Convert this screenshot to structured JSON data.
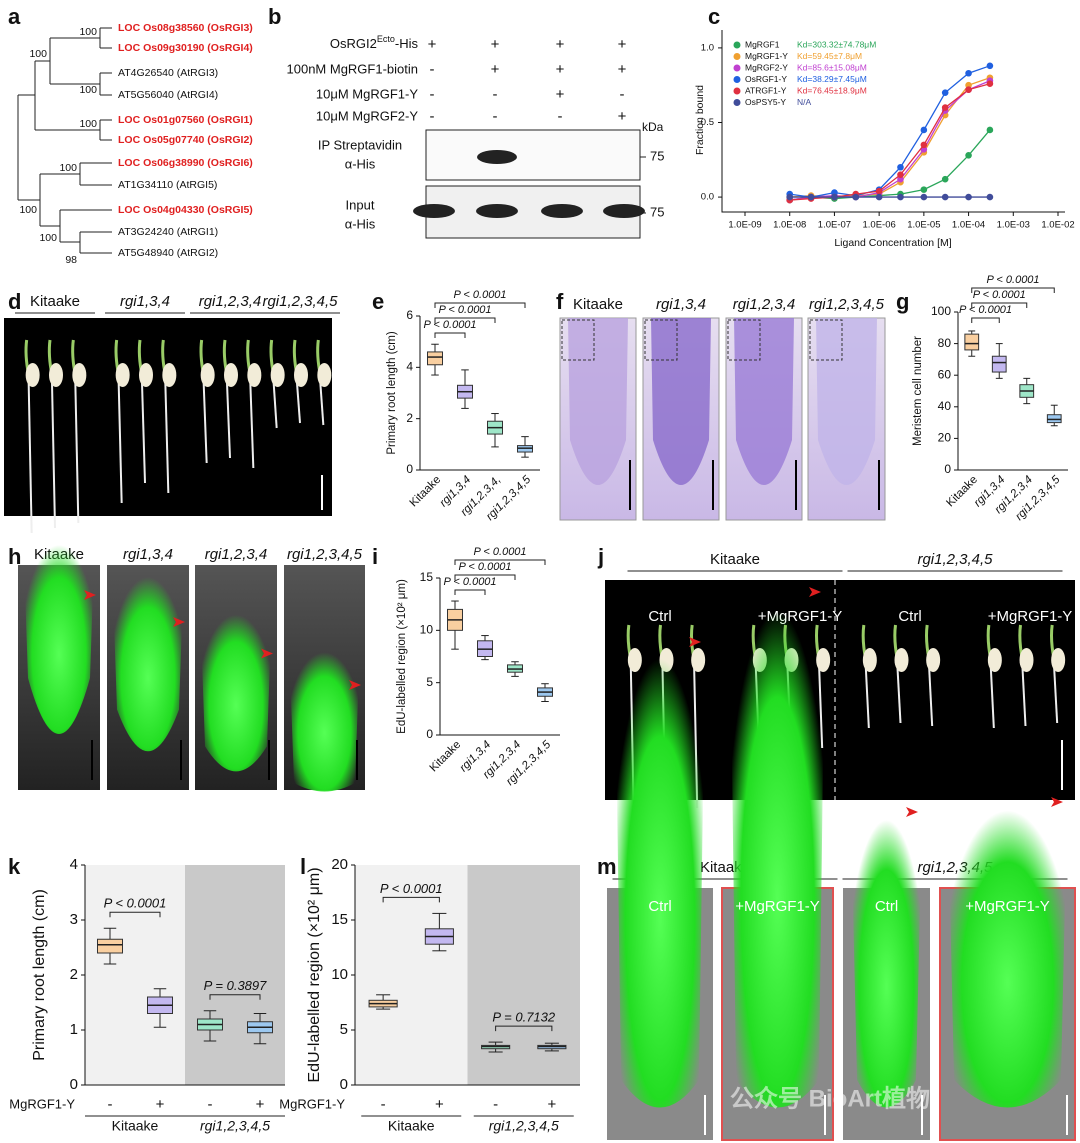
{
  "panel_letters": [
    "a",
    "b",
    "c",
    "d",
    "e",
    "f",
    "g",
    "h",
    "i",
    "j",
    "k",
    "l",
    "m"
  ],
  "tree": {
    "leaves": [
      {
        "label": "LOC Os08g38560 (OsRGI3)",
        "highlight": true
      },
      {
        "label": "LOC Os09g30190 (OsRGI4)",
        "highlight": true
      },
      {
        "label": "AT4G26540 (AtRGI3)",
        "highlight": false
      },
      {
        "label": "AT5G56040 (AtRGI4)",
        "highlight": false
      },
      {
        "label": "LOC Os01g07560 (OsRGI1)",
        "highlight": true
      },
      {
        "label": "LOC Os05g07740 (OsRGI2)",
        "highlight": true
      },
      {
        "label": "LOC Os06g38990 (OsRGI6)",
        "highlight": true
      },
      {
        "label": "AT1G34110 (AtRGI5)",
        "highlight": false
      },
      {
        "label": "LOC Os04g04330 (OsRGI5)",
        "highlight": true
      },
      {
        "label": "AT3G24240 (AtRGI1)",
        "highlight": false
      },
      {
        "label": "AT5G48940 (AtRGI2)",
        "highlight": false
      }
    ],
    "supports": [
      100,
      100,
      100,
      100,
      100,
      100,
      100,
      98
    ]
  },
  "blot": {
    "first_condition": {
      "pre": "OsRGI2",
      "sup": "Ecto",
      "post": "-His"
    },
    "conditions": [
      "100nM MgRGF1-biotin",
      "10μM MgRGF1-Y",
      "10μM MgRGF2-Y"
    ],
    "signs": [
      [
        "+",
        "+",
        "+",
        "+"
      ],
      [
        "-",
        "+",
        "+",
        "+"
      ],
      [
        "-",
        "-",
        "+",
        "-"
      ],
      [
        "-",
        "-",
        "-",
        "+"
      ]
    ],
    "ip_label": "IP Streptavidin",
    "ip_antibody": "α-His",
    "input_label": "Input",
    "input_antibody": "α-His",
    "kda": "kDa",
    "markers": [
      75,
      75
    ]
  },
  "photos": {
    "d": [
      "Kitaake",
      "rgi1,3,4",
      "rgi1,2,3,4",
      "rgi1,2,3,4,5"
    ],
    "f": [
      "Kitaake",
      "rgi1,3,4",
      "rgi1,2,3,4",
      "rgi1,2,3,4,5"
    ],
    "h": [
      "Kitaake",
      "rgi1,3,4",
      "rgi1,2,3,4",
      "rgi1,2,3,4,5"
    ],
    "j": {
      "groups": [
        "Kitaake",
        "rgi1,2,3,4,5"
      ],
      "conditions": [
        "Ctrl",
        "+MgRGF1-Y",
        "Ctrl",
        "+MgRGF1-Y"
      ]
    },
    "m": {
      "groups": [
        "Kitaake",
        "rgi1,2,3,4,5"
      ],
      "conditions": [
        "Ctrl",
        "+MgRGF1-Y",
        "Ctrl",
        "+MgRGF1-Y"
      ]
    }
  },
  "watermark": "公众号 BioArt植物",
  "chart_data": [
    {
      "type": "line",
      "log_x": true,
      "xlabel": "Ligand Concentration [M]",
      "ylabel": "Fraction bound",
      "x": [
        1e-08,
        3e-08,
        1e-07,
        3e-07,
        1e-06,
        3e-06,
        1e-05,
        3e-05,
        0.0001,
        0.0003
      ],
      "xlim": [
        1e-09,
        0.01
      ],
      "xticks": [
        {
          "value": 1e-09,
          "label": "1.0E-09"
        },
        {
          "value": 1e-08,
          "label": "1.0E-08"
        },
        {
          "value": 1e-07,
          "label": "1.0E-07"
        },
        {
          "value": 1e-06,
          "label": "1.0E-06"
        },
        {
          "value": 1e-05,
          "label": "1.0E-05"
        },
        {
          "value": 0.0001,
          "label": "1.0E-04"
        },
        {
          "value": 0.001,
          "label": "1.0E-03"
        },
        {
          "value": 0.01,
          "label": "1.0E-02"
        }
      ],
      "ylim": [
        -0.1,
        1.12
      ],
      "yticks": [
        {
          "value": 0,
          "label": "0.0"
        },
        0.5,
        {
          "value": 1,
          "label": "1.0"
        }
      ],
      "series": [
        {
          "name": "MgRGF1",
          "color": "#2aa65a",
          "kd_label": "Kd=303.32±74.78μM",
          "values": [
            -0.02,
            0,
            -0.01,
            0,
            0.01,
            0.02,
            0.05,
            0.12,
            0.28,
            0.45
          ]
        },
        {
          "name": "MgRGF1-Y",
          "color": "#f0a030",
          "kd_label": "Kd=59.45±7.8μM",
          "values": [
            0,
            0.01,
            0,
            0.01,
            0.02,
            0.1,
            0.3,
            0.55,
            0.75,
            0.8
          ]
        },
        {
          "name": "MgRGF2-Y",
          "color": "#c040d0",
          "kd_label": "Kd=85.6±15.08μM",
          "values": [
            -0.02,
            0,
            0.01,
            0,
            0.03,
            0.12,
            0.32,
            0.58,
            0.72,
            0.78
          ]
        },
        {
          "name": "OsRGF1-Y",
          "color": "#2060e0",
          "kd_label": "Kd=38.29±7.45μM",
          "values": [
            0.02,
            0,
            0.03,
            0.01,
            0.05,
            0.2,
            0.45,
            0.7,
            0.83,
            0.88
          ]
        },
        {
          "name": "ATRGF1-Y",
          "color": "#e03040",
          "kd_label": "Kd=76.45±18.9μM",
          "values": [
            -0.02,
            -0.01,
            0,
            0.02,
            0.04,
            0.15,
            0.35,
            0.6,
            0.72,
            0.76
          ]
        },
        {
          "name": "OsPSY5-Y",
          "color": "#404c9a",
          "kd_label": "N/A",
          "values": [
            0,
            0,
            0,
            0,
            0,
            0,
            0,
            0,
            0,
            0
          ]
        }
      ]
    },
    {
      "type": "box",
      "ylabel": "Primary root length (cm)",
      "categories": [
        "Kitaake",
        "rgi1,3,4",
        "rgi1,2,3,4,",
        "rgi1,2,3,4,5"
      ],
      "ylim": [
        0,
        6
      ],
      "yticks": [
        0,
        2,
        4,
        6
      ],
      "comparisons": [
        "P < 0.0001",
        "P < 0.0001",
        "P < 0.0001"
      ],
      "boxes": [
        {
          "min": 3.7,
          "q1": 4.1,
          "median": 4.4,
          "q3": 4.6,
          "max": 4.9,
          "color": "#f9cfa0"
        },
        {
          "min": 2.4,
          "q1": 2.8,
          "median": 3.05,
          "q3": 3.3,
          "max": 3.9,
          "color": "#c3b8f0"
        },
        {
          "min": 0.9,
          "q1": 1.4,
          "median": 1.65,
          "q3": 1.9,
          "max": 2.2,
          "color": "#9ee6c8"
        },
        {
          "min": 0.5,
          "q1": 0.7,
          "median": 0.85,
          "q3": 0.95,
          "max": 1.3,
          "color": "#9cc8f0"
        }
      ]
    },
    {
      "type": "box",
      "ylabel": "Meristem cell number",
      "categories": [
        "Kitaake",
        "rgi1,3,4",
        "rgi1,2,3,4",
        "rgi1,2,3,4,5"
      ],
      "ylim": [
        0,
        100
      ],
      "yticks": [
        0,
        20,
        40,
        60,
        80,
        100
      ],
      "comparisons": [
        "P < 0.0001",
        "P < 0.0001",
        "P < 0.0001"
      ],
      "boxes": [
        {
          "min": 72,
          "q1": 76,
          "median": 80,
          "q3": 86,
          "max": 88,
          "color": "#f9cfa0"
        },
        {
          "min": 58,
          "q1": 62,
          "median": 68,
          "q3": 72,
          "max": 80,
          "color": "#c3b8f0"
        },
        {
          "min": 42,
          "q1": 46,
          "median": 50,
          "q3": 54,
          "max": 58,
          "color": "#9ee6c8"
        },
        {
          "min": 28,
          "q1": 30,
          "median": 32,
          "q3": 35,
          "max": 41,
          "color": "#9cc8f0"
        }
      ]
    },
    {
      "type": "box",
      "ylabel": "EdU-labelled region (×10² μm)",
      "categories": [
        "Kitaake",
        "rgi1,3,4",
        "rgi1,2,3,4",
        "rgi1,2,3,4,5"
      ],
      "ylim": [
        0,
        15
      ],
      "yticks": [
        0,
        5,
        10,
        15
      ],
      "comparisons": [
        "P < 0.0001",
        "P < 0.0001",
        "P < 0.0001"
      ],
      "boxes": [
        {
          "min": 8.2,
          "q1": 10,
          "median": 11,
          "q3": 12,
          "max": 12.8,
          "color": "#f9cfa0"
        },
        {
          "min": 7.2,
          "q1": 7.5,
          "median": 8.2,
          "q3": 9,
          "max": 9.5,
          "color": "#c3b8f0"
        },
        {
          "min": 5.6,
          "q1": 6,
          "median": 6.3,
          "q3": 6.7,
          "max": 7,
          "color": "#9ee6c8"
        },
        {
          "min": 3.2,
          "q1": 3.7,
          "median": 4.1,
          "q3": 4.5,
          "max": 4.9,
          "color": "#9cc8f0"
        }
      ]
    },
    {
      "type": "box",
      "paired": true,
      "ylabel": "Primary root length (cm)",
      "categories": [
        "-",
        "+",
        "-",
        "+"
      ],
      "groups": [
        "Kitaake",
        "rgi1,2,3,4,5"
      ],
      "treatment_label": "MgRGF1-Y",
      "ylim": [
        0,
        4
      ],
      "yticks": [
        0,
        1,
        2,
        3,
        4
      ],
      "comparisons": [
        "P < 0.0001",
        "P = 0.3897"
      ],
      "boxes": [
        {
          "min": 2.2,
          "q1": 2.4,
          "median": 2.55,
          "q3": 2.65,
          "max": 2.85,
          "color": "#f9cfa0"
        },
        {
          "min": 1.05,
          "q1": 1.3,
          "median": 1.45,
          "q3": 1.6,
          "max": 1.75,
          "color": "#c3b8f0"
        },
        {
          "min": 0.8,
          "q1": 1,
          "median": 1.1,
          "q3": 1.2,
          "max": 1.35,
          "color": "#9ee6c8"
        },
        {
          "min": 0.75,
          "q1": 0.95,
          "median": 1.05,
          "q3": 1.15,
          "max": 1.3,
          "color": "#9cc8f0"
        }
      ]
    },
    {
      "type": "box",
      "paired": true,
      "ylabel": "EdU-labelled region (×10² μm)",
      "categories": [
        "-",
        "+",
        "-",
        "+"
      ],
      "groups": [
        "Kitaake",
        "rgi1,2,3,4,5"
      ],
      "treatment_label": "MgRGF1-Y",
      "ylim": [
        0,
        20
      ],
      "yticks": [
        0,
        5,
        10,
        15,
        20
      ],
      "comparisons": [
        "P < 0.0001",
        "P = 0.7132"
      ],
      "boxes": [
        {
          "min": 6.9,
          "q1": 7.1,
          "median": 7.4,
          "q3": 7.7,
          "max": 8.2,
          "color": "#f9cfa0"
        },
        {
          "min": 12.2,
          "q1": 12.8,
          "median": 13.5,
          "q3": 14.2,
          "max": 15.6,
          "color": "#c3b8f0"
        },
        {
          "min": 3,
          "q1": 3.3,
          "median": 3.5,
          "q3": 3.6,
          "max": 3.9,
          "color": "#9ee6c8"
        },
        {
          "min": 3.1,
          "q1": 3.3,
          "median": 3.5,
          "q3": 3.6,
          "max": 3.8,
          "color": "#9cc8f0"
        }
      ]
    }
  ]
}
